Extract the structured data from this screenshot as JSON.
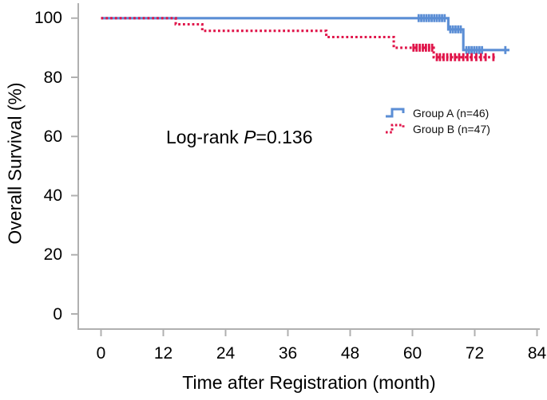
{
  "annotation": {
    "text_regular": "Log-rank ",
    "text_italic": "P",
    "text_value": "=0.136"
  },
  "legend": {
    "items": [
      {
        "label": "Group A (n=46)",
        "color": "#5b8ed5",
        "style": "solid"
      },
      {
        "label": "Group B (n=47)",
        "color": "#e0154a",
        "style": "dotted"
      }
    ]
  },
  "chart_data": {
    "type": "line",
    "subtype": "kaplan-meier-step",
    "title": "",
    "xlabel": "Time after Registration (month)",
    "ylabel": "Overall Survival (%)",
    "xlim": [
      0,
      84
    ],
    "ylim": [
      0,
      100
    ],
    "xticks": [
      0,
      12,
      24,
      36,
      48,
      60,
      72,
      84
    ],
    "yticks": [
      0,
      20,
      40,
      60,
      80,
      100
    ],
    "grid": false,
    "legend_position": "inside-right-middle",
    "annotation": "Log-rank P=0.136",
    "axis_color": "#b0b0b0",
    "series": [
      {
        "name": "Group A (n=46)",
        "color": "#5b8ed5",
        "line_style": "solid",
        "steps": [
          [
            0,
            100
          ],
          [
            66.9,
            100
          ],
          [
            66.9,
            96.2
          ],
          [
            69.8,
            96.2
          ],
          [
            69.8,
            89.2
          ],
          [
            78.7,
            89.2
          ]
        ],
        "censors": [
          [
            61.2,
            100
          ],
          [
            61.7,
            100
          ],
          [
            62.2,
            100
          ],
          [
            62.7,
            100
          ],
          [
            63.2,
            100
          ],
          [
            63.7,
            100
          ],
          [
            64.2,
            100
          ],
          [
            64.7,
            100
          ],
          [
            65.2,
            100
          ],
          [
            65.7,
            100
          ],
          [
            66.2,
            100
          ],
          [
            67.3,
            96.2
          ],
          [
            67.8,
            96.2
          ],
          [
            68.3,
            96.2
          ],
          [
            68.8,
            96.2
          ],
          [
            69.3,
            96.2
          ],
          [
            70.4,
            89.2
          ],
          [
            70.9,
            89.2
          ],
          [
            71.4,
            89.2
          ],
          [
            71.9,
            89.2
          ],
          [
            72.4,
            89.2
          ],
          [
            72.9,
            89.2
          ],
          [
            73.4,
            89.2
          ],
          [
            77.9,
            89.2
          ]
        ]
      },
      {
        "name": "Group B (n=47)",
        "color": "#e0154a",
        "line_style": "dotted",
        "steps": [
          [
            0,
            100
          ],
          [
            14.4,
            100
          ],
          [
            14.4,
            97.9
          ],
          [
            19.5,
            97.9
          ],
          [
            19.5,
            95.7
          ],
          [
            43.4,
            95.7
          ],
          [
            43.4,
            93.6
          ],
          [
            56.4,
            93.6
          ],
          [
            56.4,
            90.0
          ],
          [
            64.1,
            90.0
          ],
          [
            64.1,
            86.8
          ],
          [
            76.2,
            86.8
          ]
        ],
        "censors": [
          [
            60.2,
            90.0
          ],
          [
            60.8,
            90.0
          ],
          [
            61.4,
            90.0
          ],
          [
            62.0,
            90.0
          ],
          [
            62.6,
            90.0
          ],
          [
            63.2,
            90.0
          ],
          [
            63.8,
            90.0
          ],
          [
            64.7,
            86.8
          ],
          [
            65.3,
            86.8
          ],
          [
            66.0,
            86.8
          ],
          [
            66.7,
            86.8
          ],
          [
            67.4,
            86.8
          ],
          [
            68.2,
            86.8
          ],
          [
            69.0,
            86.8
          ],
          [
            69.8,
            86.8
          ],
          [
            70.6,
            86.8
          ],
          [
            71.4,
            86.8
          ],
          [
            72.3,
            86.8
          ],
          [
            73.2,
            86.8
          ],
          [
            74.1,
            86.8
          ],
          [
            75.6,
            86.8
          ]
        ]
      }
    ]
  }
}
